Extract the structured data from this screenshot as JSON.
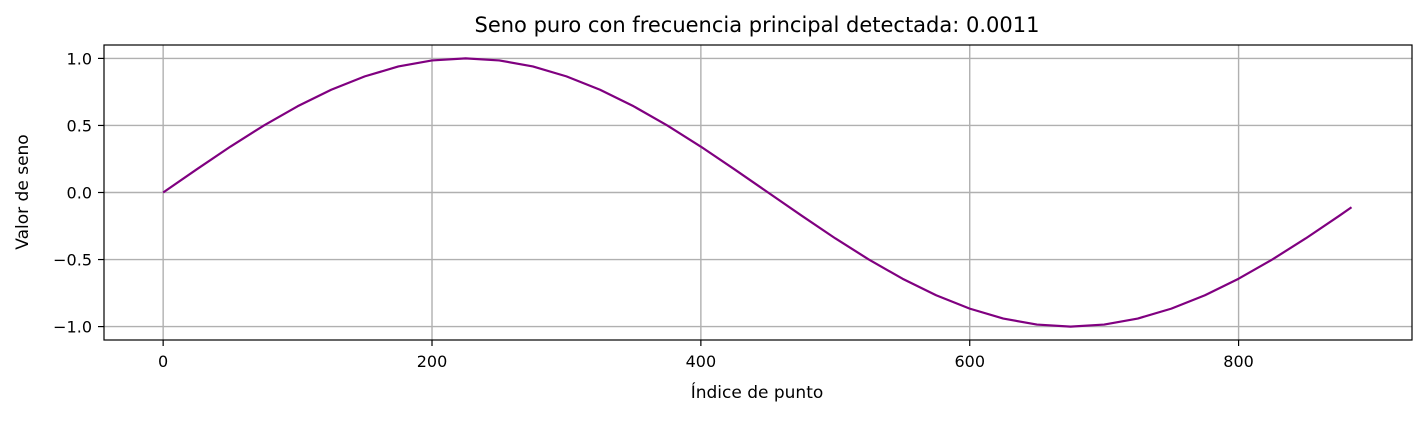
{
  "chart_data": {
    "type": "line",
    "title": "Seno puro con frecuencia principal detectada: 0.0011",
    "xlabel": "Índice de punto",
    "ylabel": "Valor de seno",
    "xlim": [
      -44,
      929
    ],
    "ylim": [
      -1.1,
      1.1
    ],
    "xticks": [
      0,
      200,
      400,
      600,
      800
    ],
    "xtick_labels": [
      "0",
      "200",
      "400",
      "600",
      "800"
    ],
    "yticks": [
      1.0,
      0.5,
      0.0,
      -0.5,
      -1.0
    ],
    "ytick_labels": [
      "1.0",
      "0.5",
      "0.0",
      "−0.5",
      "−1.0"
    ],
    "grid": true,
    "line_color": "#800080",
    "series": [
      {
        "x": [
          0,
          25,
          50,
          75,
          100,
          125,
          150,
          175,
          200,
          225,
          250,
          275,
          300,
          325,
          350,
          375,
          400,
          425,
          450,
          475,
          500,
          525,
          550,
          575,
          600,
          625,
          650,
          675,
          700,
          725,
          750,
          775,
          800,
          825,
          850,
          875,
          884
        ],
        "values": [
          0.0,
          0.173,
          0.342,
          0.5,
          0.643,
          0.766,
          0.866,
          0.94,
          0.985,
          1.0,
          0.985,
          0.94,
          0.866,
          0.766,
          0.643,
          0.5,
          0.342,
          0.173,
          0.0,
          -0.173,
          -0.342,
          -0.5,
          -0.643,
          -0.766,
          -0.866,
          -0.94,
          -0.985,
          -1.0,
          -0.985,
          -0.94,
          -0.866,
          -0.766,
          -0.643,
          -0.5,
          -0.342,
          -0.173,
          -0.11
        ]
      }
    ]
  }
}
